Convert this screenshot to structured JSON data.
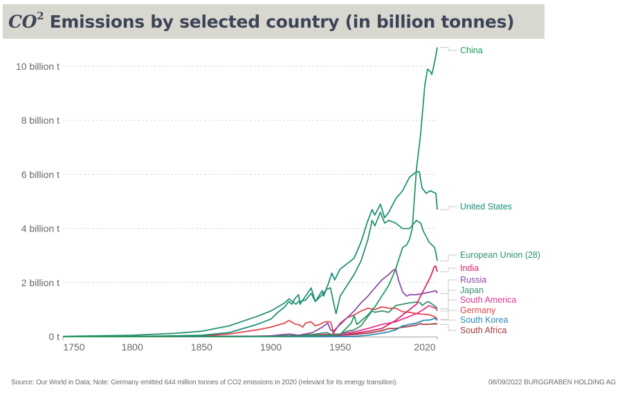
{
  "title": {
    "prefix": "CO",
    "superscript": "2",
    "text": " Emissions by selected country (in billion tonnes)"
  },
  "footer": {
    "source_note": "Source: Our World in Data; Note: Germany emitted 644 million tonnes of CO2 emissions in 2020 (relevant for its energy transition).",
    "date_company": "08/09/2022  BURGGRABEN HOLDING AG"
  },
  "chart_data": {
    "type": "line",
    "title": "CO2 Emissions by selected country (in billion tonnes)",
    "xlabel": "",
    "ylabel": "",
    "xlim": [
      1750,
      2020
    ],
    "ylim": [
      0,
      10.6
    ],
    "grid": true,
    "legend": "right (line-end labels)",
    "x_ticks": [
      1750,
      1800,
      1850,
      1900,
      1950,
      2020
    ],
    "x_tick_labels": [
      "1750",
      "1800",
      "1850",
      "1900",
      "1950",
      "2020"
    ],
    "y_ticks": [
      0,
      2,
      4,
      6,
      8,
      10
    ],
    "y_tick_labels": [
      "0 t",
      "2 billion t",
      "4 billion t",
      "6 billion t",
      "8 billion t",
      "10 billion t"
    ],
    "series": [
      {
        "name": "China",
        "color": "#1e9a5c",
        "x": [
          1750,
          1900,
          1930,
          1945,
          1950,
          1958,
          1960,
          1962,
          1970,
          1975,
          1980,
          1985,
          1990,
          1995,
          1998,
          2000,
          2002,
          2005,
          2008,
          2011,
          2013,
          2015,
          2016,
          2017,
          2019,
          2020
        ],
        "values": [
          0,
          0.01,
          0.03,
          0.05,
          0.08,
          0.5,
          0.78,
          0.45,
          0.8,
          1.1,
          1.5,
          1.9,
          2.5,
          3.3,
          3.4,
          3.6,
          4.0,
          6.2,
          7.5,
          9.3,
          9.9,
          9.8,
          9.7,
          9.9,
          10.4,
          10.7
        ]
      },
      {
        "name": "United States",
        "color": "#1a8f7a",
        "x": [
          1750,
          1800,
          1830,
          1850,
          1870,
          1880,
          1890,
          1900,
          1905,
          1910,
          1913,
          1915,
          1918,
          1920,
          1921,
          1925,
          1929,
          1932,
          1937,
          1938,
          1941,
          1944,
          1946,
          1950,
          1955,
          1960,
          1965,
          1970,
          1973,
          1975,
          1979,
          1982,
          1985,
          1990,
          1995,
          2000,
          2005,
          2007,
          2009,
          2012,
          2015,
          2019,
          2020
        ],
        "values": [
          0,
          0.005,
          0.03,
          0.05,
          0.15,
          0.3,
          0.45,
          0.65,
          0.9,
          1.1,
          1.3,
          1.2,
          1.45,
          1.55,
          1.2,
          1.5,
          1.8,
          1.3,
          1.7,
          1.5,
          1.9,
          2.35,
          2.1,
          2.5,
          2.7,
          2.9,
          3.5,
          4.3,
          4.7,
          4.5,
          4.9,
          4.4,
          4.6,
          5.1,
          5.4,
          5.9,
          6.1,
          6.1,
          5.5,
          5.3,
          5.4,
          5.3,
          4.7
        ]
      },
      {
        "name": "European Union (28)",
        "color": "#27906e",
        "x": [
          1750,
          1800,
          1830,
          1850,
          1870,
          1890,
          1900,
          1910,
          1913,
          1918,
          1920,
          1925,
          1929,
          1932,
          1937,
          1940,
          1943,
          1945,
          1947,
          1950,
          1955,
          1960,
          1965,
          1970,
          1973,
          1975,
          1979,
          1982,
          1985,
          1990,
          1995,
          2000,
          2005,
          2008,
          2010,
          2014,
          2018,
          2019,
          2020
        ],
        "values": [
          0.01,
          0.05,
          0.12,
          0.2,
          0.4,
          0.75,
          0.95,
          1.25,
          1.4,
          1.2,
          1.3,
          1.35,
          1.6,
          1.3,
          1.55,
          1.75,
          1.8,
          1.3,
          0.85,
          1.5,
          1.9,
          2.3,
          2.8,
          3.6,
          4.3,
          4.1,
          4.6,
          4.2,
          4.3,
          4.2,
          4.0,
          4.0,
          4.3,
          4.2,
          3.9,
          3.5,
          3.3,
          3.1,
          2.8
        ]
      },
      {
        "name": "India",
        "color": "#d9246b",
        "x": [
          1750,
          1900,
          1950,
          1960,
          1970,
          1980,
          1990,
          2000,
          2005,
          2010,
          2015,
          2018,
          2019,
          2020
        ],
        "values": [
          0,
          0.01,
          0.05,
          0.12,
          0.2,
          0.3,
          0.6,
          1.0,
          1.2,
          1.7,
          2.2,
          2.6,
          2.6,
          2.4
        ]
      },
      {
        "name": "Russia",
        "color": "#8a4ba5",
        "x": [
          1750,
          1880,
          1900,
          1913,
          1920,
          1930,
          1937,
          1941,
          1943,
          1945,
          1950,
          1955,
          1960,
          1965,
          1970,
          1975,
          1980,
          1985,
          1988,
          1990,
          1992,
          1995,
          1998,
          2000,
          2005,
          2010,
          2015,
          2019,
          2020
        ],
        "values": [
          0,
          0.01,
          0.03,
          0.1,
          0.05,
          0.15,
          0.35,
          0.5,
          0.25,
          0.2,
          0.45,
          0.7,
          0.95,
          1.25,
          1.5,
          1.8,
          2.1,
          2.3,
          2.45,
          2.5,
          2.1,
          1.65,
          1.5,
          1.55,
          1.55,
          1.6,
          1.65,
          1.7,
          1.6
        ]
      },
      {
        "name": "Japan",
        "color": "#3a8f6e",
        "x": [
          1750,
          1880,
          1900,
          1920,
          1930,
          1940,
          1945,
          1950,
          1955,
          1960,
          1965,
          1970,
          1973,
          1975,
          1980,
          1985,
          1990,
          1995,
          2000,
          2005,
          2008,
          2009,
          2013,
          2015,
          2019,
          2020
        ],
        "values": [
          0,
          0.005,
          0.02,
          0.05,
          0.08,
          0.15,
          0.05,
          0.1,
          0.2,
          0.25,
          0.4,
          0.75,
          0.95,
          0.9,
          0.95,
          0.9,
          1.15,
          1.2,
          1.25,
          1.28,
          1.25,
          1.15,
          1.3,
          1.25,
          1.1,
          1.03
        ]
      },
      {
        "name": "South America",
        "color": "#e0358f",
        "x": [
          1750,
          1900,
          1950,
          1960,
          1970,
          1980,
          1990,
          2000,
          2005,
          2010,
          2014,
          2016,
          2019,
          2020
        ],
        "values": [
          0,
          0.01,
          0.1,
          0.18,
          0.3,
          0.45,
          0.55,
          0.75,
          0.85,
          1.0,
          1.15,
          1.1,
          1.05,
          0.95
        ]
      },
      {
        "name": "Germany",
        "color": "#e0464e",
        "x": [
          1750,
          1800,
          1830,
          1850,
          1870,
          1890,
          1900,
          1910,
          1913,
          1918,
          1920,
          1923,
          1925,
          1929,
          1932,
          1935,
          1939,
          1943,
          1944,
          1945,
          1946,
          1950,
          1955,
          1960,
          1965,
          1970,
          1975,
          1980,
          1985,
          1990,
          1995,
          2000,
          2005,
          2010,
          2015,
          2019,
          2020
        ],
        "values": [
          0,
          0.005,
          0.01,
          0.02,
          0.1,
          0.25,
          0.35,
          0.5,
          0.6,
          0.45,
          0.45,
          0.35,
          0.5,
          0.55,
          0.4,
          0.45,
          0.55,
          0.55,
          0.4,
          0.1,
          0.2,
          0.5,
          0.7,
          0.8,
          0.95,
          1.05,
          1.0,
          1.1,
          1.05,
          1.05,
          0.92,
          0.9,
          0.85,
          0.83,
          0.8,
          0.71,
          0.64
        ]
      },
      {
        "name": "South Korea",
        "color": "#2a8ab5",
        "x": [
          1750,
          1950,
          1960,
          1970,
          1980,
          1985,
          1990,
          1995,
          2000,
          2005,
          2010,
          2015,
          2018,
          2019,
          2020
        ],
        "values": [
          0,
          0.005,
          0.01,
          0.05,
          0.13,
          0.18,
          0.25,
          0.4,
          0.45,
          0.5,
          0.6,
          0.62,
          0.68,
          0.65,
          0.6
        ]
      },
      {
        "name": "South Africa",
        "color": "#a33a3a",
        "x": [
          1750,
          1900,
          1920,
          1950,
          1960,
          1970,
          1980,
          1985,
          1990,
          1995,
          2000,
          2005,
          2008,
          2010,
          2015,
          2019,
          2020
        ],
        "values": [
          0,
          0.01,
          0.02,
          0.05,
          0.08,
          0.13,
          0.22,
          0.3,
          0.3,
          0.35,
          0.38,
          0.43,
          0.48,
          0.45,
          0.46,
          0.48,
          0.45
        ]
      }
    ],
    "labels": [
      {
        "name": "China",
        "color": "#1e9a5c"
      },
      {
        "name": "United States",
        "color": "#1a8f7a"
      },
      {
        "name": "European Union (28)",
        "color": "#27906e"
      },
      {
        "name": "India",
        "color": "#d9246b"
      },
      {
        "name": "Russia",
        "color": "#8a4ba5"
      },
      {
        "name": "Japan",
        "color": "#3a8f6e"
      },
      {
        "name": "South America",
        "color": "#e0358f"
      },
      {
        "name": "Germany",
        "color": "#e0464e"
      },
      {
        "name": "South Korea",
        "color": "#2a8ab5"
      },
      {
        "name": "South Africa",
        "color": "#a33a3a"
      }
    ]
  }
}
